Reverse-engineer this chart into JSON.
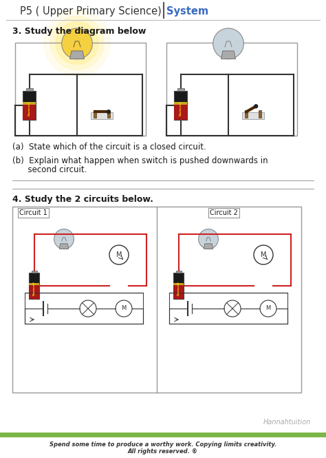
{
  "title_main": "P5 ( Upper Primary Science)",
  "title_system": "System",
  "title_bar_color": "#7ab648",
  "section3_label": "3. Study the diagram below",
  "qa_text": "(a)  State which of the circuit is a closed circuit.",
  "qb_text_line1": "(b)  Explain what happen when switch is pushed downwards in",
  "qb_text_line2": "      second circuit.",
  "section4_label": "4. Study the 2 circuits below.",
  "circuit1_label": "Circuit 1",
  "circuit2_label": "Circuit 2",
  "footer_brand": "Hannahtuition",
  "footer_text1": "Spend some time to produce a worthy work. Copying limits creativity.",
  "footer_text2": "All rights reserved. ®",
  "bg_color": "#ffffff",
  "text_color": "#1a1a1a",
  "border_color": "#888888",
  "wire_color": "#333333",
  "red_wire_color": "#cc2222",
  "system_color": "#3a6bbf"
}
